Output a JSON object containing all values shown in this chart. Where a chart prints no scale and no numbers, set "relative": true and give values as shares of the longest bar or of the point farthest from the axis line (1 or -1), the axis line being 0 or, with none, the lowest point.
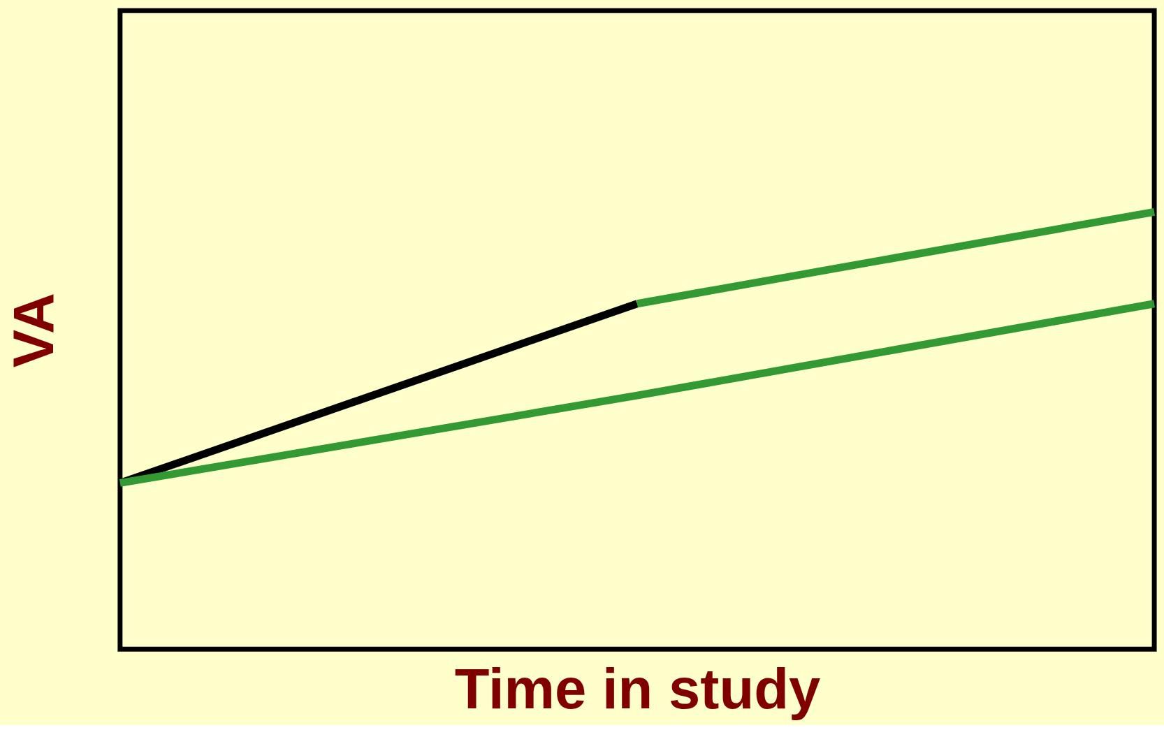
{
  "chart_data": {
    "type": "line",
    "xlabel": "Time in study",
    "ylabel": "VA",
    "relative": true,
    "grid": false,
    "categories": [
      null,
      null,
      null
    ],
    "series": [
      {
        "color": "#000000",
        "values": [
          0.38,
          0.79,
          null
        ]
      },
      {
        "color": "#339933",
        "values": [
          null,
          0.79,
          1
        ]
      },
      {
        "color": "#339933",
        "values": [
          0.38,
          0.58,
          0.79
        ]
      }
    ]
  }
}
